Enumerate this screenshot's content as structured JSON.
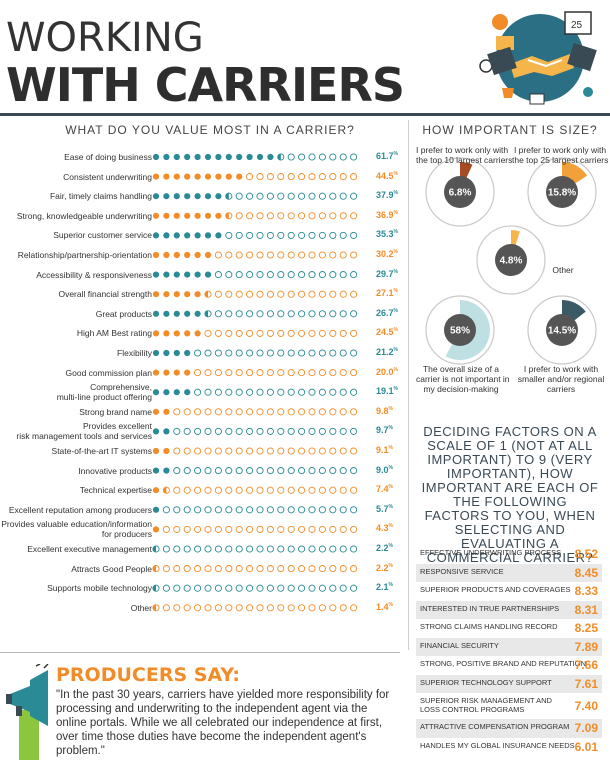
{
  "header": {
    "line1": "WORKING",
    "line2": "WITH CARRIERS"
  },
  "left_title": "WHAT DO YOU VALUE MOST IN A CARRIER?",
  "right_title": "HOW IMPORTANT IS SIZE?",
  "colors": {
    "teal": "#2a8a96",
    "orange": "#f28c28",
    "dark": "#3a4a55",
    "gray": "#555555"
  },
  "chart_data": [
    {
      "type": "bar",
      "title": "WHAT DO YOU VALUE MOST IN A CARRIER?",
      "categories": [
        "Ease of doing business",
        "Consistent underwriting",
        "Fair, timely claims handling",
        "Strong, knowledgeable underwriting",
        "Superior customer service",
        "Relationship/partnership-orientation",
        "Accessibility & responsiveness",
        "Overall financial strength",
        "Great products",
        "High AM Best rating",
        "Flexibility",
        "Good commission plan",
        "Comprehensive,\nmulti-line product offering",
        "Strong brand name",
        "Provides excellent\nrisk management tools and services",
        "State-of-the-art IT systems",
        "Innovative products",
        "Technical expertise",
        "Excellent reputation among producers",
        "Provides valuable education/information\nfor producers",
        "Excellent executive management",
        "Attracts Good People",
        "Supports mobile technology",
        "Other"
      ],
      "values": [
        61.7,
        44.5,
        37.9,
        36.9,
        35.3,
        30.2,
        29.7,
        27.1,
        26.7,
        24.5,
        21.2,
        20.0,
        19.1,
        9.8,
        9.7,
        9.1,
        9.0,
        7.4,
        5.7,
        4.3,
        2.2,
        2.2,
        2.1,
        1.4
      ],
      "value_labels": [
        "61.7",
        "44.5",
        "37.9",
        "36.9",
        "35.3",
        "30.2",
        "29.7",
        "27.1",
        "26.7",
        "24.5",
        "21.2",
        "20.0",
        "19.1",
        "9.8",
        "9.7",
        "9.1",
        "9.0",
        "7.4",
        "5.7",
        "4.3",
        "2.2",
        "2.2",
        "2.1",
        "1.4"
      ],
      "unit": "%",
      "dot_scale": {
        "dots": 20,
        "max": 100
      }
    },
    {
      "type": "pie",
      "title": "HOW IMPORTANT IS SIZE?",
      "slices": [
        {
          "label": "I prefer to work only with\nthe top 10 largest carriers",
          "value": 6.8,
          "color": "#a64b22",
          "display": "6.8"
        },
        {
          "label": "I prefer to work only with\nthe top 25 largest carriers",
          "value": 15.8,
          "color": "#f2a03a",
          "display": "15.8"
        },
        {
          "label": "Other",
          "value": 4.8,
          "color": "#f6b54a",
          "display": "4.8"
        },
        {
          "label": "The overall size of a\ncarrier is not important in\nmy decision-making",
          "value": 58,
          "color": "#bfe0e3",
          "display": "58"
        },
        {
          "label": "I prefer to work with\nsmaller and/or regional\ncarriers",
          "value": 14.5,
          "color": "#3a5a66",
          "display": "14.5"
        }
      ],
      "unit": "%"
    },
    {
      "type": "table",
      "title": "DECIDING FACTORS ON A SCALE OF 1 (NOT AT ALL IMPORTANT) TO 9 (VERY IMPORTANT), HOW IMPORTANT ARE EACH OF THE FOLLOWING FACTORS TO YOU, WHEN SELECTING AND EVALUATING A COMMERCIAL CARRIER?",
      "rows": [
        {
          "factor": "EFFECTIVE UNDERWRITING PROCESS",
          "score": "8.52"
        },
        {
          "factor": "RESPONSIVE SERVICE",
          "score": "8.45"
        },
        {
          "factor": "SUPERIOR PRODUCTS AND COVERAGES",
          "score": "8.33"
        },
        {
          "factor": "INTERESTED IN TRUE PARTNERSHIPS",
          "score": "8.31"
        },
        {
          "factor": "STRONG CLAIMS HANDLING RECORD",
          "score": "8.25"
        },
        {
          "factor": "FINANCIAL SECURITY",
          "score": "7.89"
        },
        {
          "factor": "STRONG, POSITIVE BRAND AND REPUTATION",
          "score": "7.66"
        },
        {
          "factor": "SUPERIOR TECHNOLOGY SUPPORT",
          "score": "7.61"
        },
        {
          "factor": "SUPERIOR RISK MANAGEMENT AND\nLOSS CONTROL PROGRAMS",
          "score": "7.40"
        },
        {
          "factor": "ATTRACTIVE COMPENSATION PROGRAM",
          "score": "7.09"
        },
        {
          "factor": "HANDLES MY GLOBAL INSURANCE NEEDS",
          "score": "6.01"
        }
      ]
    }
  ],
  "producers": {
    "title": "PRODUCERS SAY:",
    "quote": "\"In the past 30 years, carriers have yielded more responsibility for processing and underwriting to the independent agent via the online portals. While we all celebrated our independence at first, over time those duties have become the independent agent's problem.\""
  },
  "icons": {
    "hero": "handshake-illustration",
    "megaphone": "megaphone-icon"
  }
}
